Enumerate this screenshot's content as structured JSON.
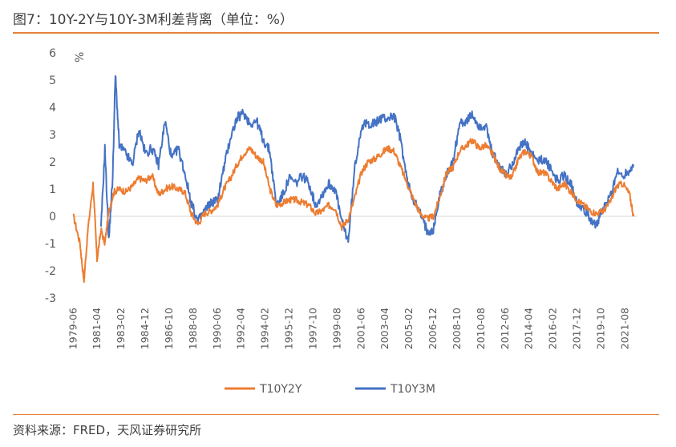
{
  "title": "图7：10Y-2Y与10Y-3M利差背离（单位：%）",
  "source": "资料来源：FRED，天风证券研究所",
  "colors": {
    "accent": "#e5823a",
    "T10Y2Y": "#ed7d31",
    "T10Y3M": "#4472c4"
  },
  "chart_data": {
    "type": "line",
    "title": "图7：10Y-2Y与10Y-3M利差背离（单位：%）",
    "ylabel": "%",
    "ylim": [
      -3,
      6
    ],
    "yticks": [
      "6",
      "5",
      "4",
      "3",
      "2",
      "1",
      "0",
      "-1",
      "-2",
      "-3"
    ],
    "x_tick_labels": [
      "1979-06",
      "1981-04",
      "1983-02",
      "1984-12",
      "1986-10",
      "1988-08",
      "1990-06",
      "1992-04",
      "1994-02",
      "1995-12",
      "1997-10",
      "1999-08",
      "2001-06",
      "2003-04",
      "2005-02",
      "2006-12",
      "2008-10",
      "2010-08",
      "2012-06",
      "2014-04",
      "2016-02",
      "2017-12",
      "2019-10",
      "2021-08"
    ],
    "legend": {
      "position": "bottom",
      "entries": [
        "T10Y2Y",
        "T10Y3M"
      ]
    },
    "series": [
      {
        "name": "T10Y2Y",
        "color": "#ed7d31",
        "x": [
          1979.5,
          1980.0,
          1980.3,
          1980.6,
          1981.0,
          1981.3,
          1981.6,
          1981.9,
          1982.2,
          1982.6,
          1983.0,
          1983.5,
          1984.0,
          1984.5,
          1985.0,
          1985.5,
          1986.0,
          1986.5,
          1987.0,
          1987.5,
          1988.0,
          1988.5,
          1989.0,
          1989.5,
          1990.0,
          1990.5,
          1991.0,
          1991.5,
          1992.0,
          1992.5,
          1993.0,
          1993.5,
          1994.0,
          1994.5,
          1995.0,
          1995.5,
          1996.0,
          1996.5,
          1997.0,
          1997.5,
          1998.0,
          1998.5,
          1999.0,
          1999.5,
          2000.0,
          2000.5,
          2001.0,
          2001.5,
          2002.0,
          2002.5,
          2003.0,
          2003.5,
          2004.0,
          2004.5,
          2005.0,
          2005.5,
          2006.0,
          2006.5,
          2007.0,
          2007.5,
          2008.0,
          2008.5,
          2009.0,
          2009.5,
          2010.0,
          2010.5,
          2011.0,
          2011.5,
          2012.0,
          2012.5,
          2013.0,
          2013.5,
          2014.0,
          2014.5,
          2015.0,
          2015.5,
          2016.0,
          2016.5,
          2017.0,
          2017.5,
          2018.0,
          2018.5,
          2019.0,
          2019.5,
          2020.0,
          2020.5,
          2021.0,
          2021.5,
          2022.0,
          2022.3
        ],
        "values": [
          0.0,
          -1.0,
          -2.4,
          -0.5,
          1.2,
          -1.6,
          -0.5,
          -1.0,
          0.2,
          0.9,
          1.0,
          0.9,
          1.1,
          1.4,
          1.3,
          1.5,
          0.8,
          1.0,
          1.1,
          1.0,
          0.9,
          0.1,
          -0.3,
          0.1,
          0.2,
          0.4,
          1.0,
          1.4,
          1.9,
          2.3,
          2.5,
          2.2,
          2.0,
          1.0,
          0.4,
          0.5,
          0.6,
          0.6,
          0.5,
          0.4,
          0.1,
          0.2,
          0.4,
          0.3,
          -0.4,
          -0.1,
          0.7,
          1.6,
          2.0,
          2.1,
          2.3,
          2.5,
          2.4,
          1.8,
          1.2,
          0.6,
          0.1,
          -0.1,
          0.0,
          0.7,
          1.6,
          1.8,
          2.4,
          2.6,
          2.8,
          2.5,
          2.6,
          2.3,
          1.8,
          1.5,
          1.4,
          2.1,
          2.4,
          2.2,
          1.6,
          1.6,
          1.3,
          1.0,
          1.2,
          0.9,
          0.6,
          0.4,
          0.2,
          0.1,
          0.2,
          0.5,
          1.1,
          1.2,
          0.8,
          0.0
        ]
      },
      {
        "name": "T10Y3M",
        "color": "#4472c4",
        "x": [
          1979.5,
          1980.0,
          1980.5,
          1981.0,
          1981.3,
          1981.6,
          1981.9,
          1982.2,
          1982.5,
          1982.7,
          1983.0,
          1983.5,
          1984.0,
          1984.5,
          1985.0,
          1985.5,
          1986.0,
          1986.5,
          1987.0,
          1987.5,
          1988.0,
          1988.5,
          1989.0,
          1989.5,
          1990.0,
          1990.5,
          1991.0,
          1991.5,
          1992.0,
          1992.5,
          1993.0,
          1993.5,
          1994.0,
          1994.5,
          1995.0,
          1995.5,
          1996.0,
          1996.5,
          1997.0,
          1997.5,
          1998.0,
          1998.5,
          1999.0,
          1999.5,
          2000.0,
          2000.5,
          2001.0,
          2001.5,
          2002.0,
          2002.5,
          2003.0,
          2003.5,
          2004.0,
          2004.5,
          2005.0,
          2005.5,
          2006.0,
          2006.5,
          2007.0,
          2007.5,
          2008.0,
          2008.5,
          2009.0,
          2009.5,
          2010.0,
          2010.5,
          2011.0,
          2011.5,
          2012.0,
          2012.5,
          2013.0,
          2013.5,
          2014.0,
          2014.5,
          2015.0,
          2015.5,
          2016.0,
          2016.5,
          2017.0,
          2017.5,
          2018.0,
          2018.5,
          2019.0,
          2019.5,
          2020.0,
          2020.5,
          2021.0,
          2021.5,
          2022.0,
          2022.3
        ],
        "values": [
          null,
          null,
          null,
          null,
          null,
          -0.5,
          2.5,
          -0.9,
          1.5,
          5.2,
          2.6,
          2.3,
          1.9,
          3.2,
          2.3,
          2.5,
          1.9,
          3.5,
          2.1,
          2.5,
          1.6,
          0.5,
          -0.2,
          0.2,
          0.5,
          0.6,
          1.8,
          2.9,
          3.6,
          3.8,
          3.4,
          3.5,
          2.8,
          2.4,
          0.4,
          0.8,
          1.4,
          1.2,
          1.5,
          1.2,
          0.4,
          0.8,
          1.2,
          1.0,
          -0.2,
          -0.9,
          1.8,
          3.3,
          3.4,
          3.4,
          3.6,
          3.6,
          3.7,
          2.8,
          1.3,
          0.6,
          0.1,
          -0.5,
          -0.5,
          0.8,
          1.5,
          2.0,
          3.4,
          3.5,
          3.7,
          3.3,
          3.3,
          2.3,
          1.9,
          1.5,
          1.9,
          2.5,
          2.7,
          2.3,
          2.0,
          2.1,
          1.7,
          1.3,
          1.5,
          1.2,
          0.5,
          0.3,
          -0.1,
          -0.3,
          0.3,
          0.7,
          1.6,
          1.5,
          1.7,
          1.9
        ]
      }
    ]
  }
}
